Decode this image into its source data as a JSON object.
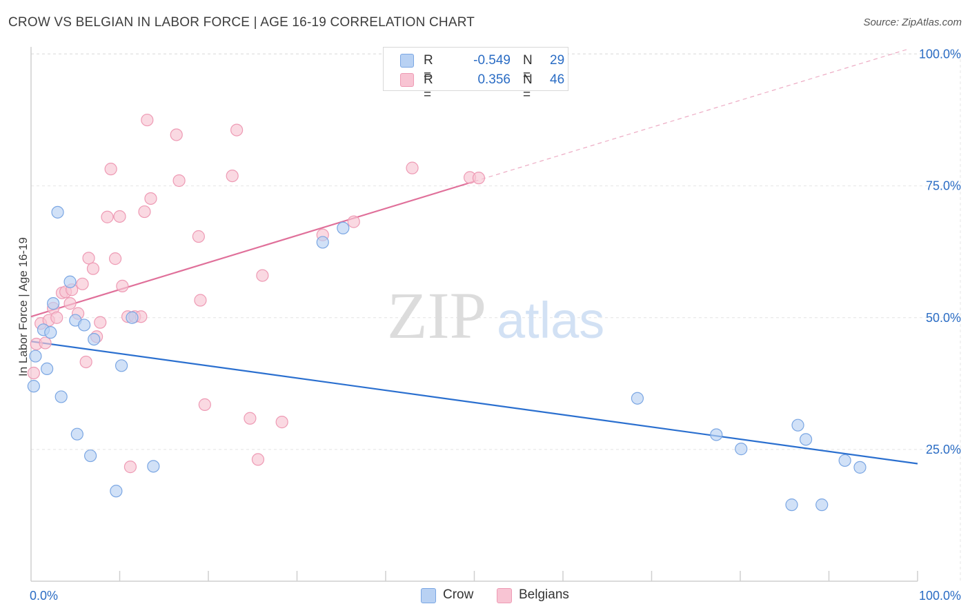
{
  "header": {
    "title": "CROW VS BELGIAN IN LABOR FORCE | AGE 16-19 CORRELATION CHART",
    "source": "Source: ZipAtlas.com"
  },
  "watermark": {
    "zip": "ZIP",
    "atlas": "atlas"
  },
  "legend": {
    "r_label": "R =",
    "n_label": "N =",
    "rows": [
      {
        "name": "Crow",
        "r": "-0.549",
        "n": "29",
        "fill": "#b8d1f3",
        "stroke": "#7aa6e3"
      },
      {
        "name": "Belgians",
        "r": "0.356",
        "n": "46",
        "fill": "#f8c4d3",
        "stroke": "#ee9ab4"
      }
    ]
  },
  "chart_data": {
    "type": "scatter",
    "title": "CROW VS BELGIAN IN LABOR FORCE | AGE 16-19 CORRELATION CHART",
    "xlabel": "",
    "ylabel": "In Labor Force | Age 16-19",
    "xlim": [
      0,
      100
    ],
    "ylim": [
      0,
      100
    ],
    "x_tick_labels": [
      {
        "value": 0,
        "label": "0.0%"
      },
      {
        "value": 100,
        "label": "100.0%"
      }
    ],
    "y_tick_labels": [
      {
        "value": 25,
        "label": "25.0%"
      },
      {
        "value": 50,
        "label": "50.0%"
      },
      {
        "value": 75,
        "label": "75.0%"
      },
      {
        "value": 100,
        "label": "100.0%"
      }
    ],
    "x_minor_ticks": [
      10,
      20,
      30,
      40,
      50,
      60,
      70,
      80,
      90,
      100
    ],
    "grid": true,
    "legend_position": "top-center",
    "colors": {
      "crow_fill": "#b8d1f3",
      "crow_stroke": "#7aa6e3",
      "crow_line": "#2a6fcf",
      "belgian_fill": "#f8c4d3",
      "belgian_stroke": "#ee9ab4",
      "belgian_line": "#e0709a",
      "axis_label": "#2a6cc4"
    },
    "series": [
      {
        "name": "Crow",
        "r": -0.549,
        "n": 29,
        "points": [
          [
            0.3,
            37.0
          ],
          [
            0.5,
            42.7
          ],
          [
            1.4,
            47.7
          ],
          [
            1.8,
            40.3
          ],
          [
            2.2,
            47.2
          ],
          [
            2.5,
            52.7
          ],
          [
            3.0,
            70.0
          ],
          [
            3.4,
            35.0
          ],
          [
            4.4,
            56.8
          ],
          [
            5.0,
            49.5
          ],
          [
            5.2,
            27.9
          ],
          [
            6.0,
            48.6
          ],
          [
            6.7,
            23.8
          ],
          [
            7.1,
            45.9
          ],
          [
            9.6,
            17.1
          ],
          [
            10.2,
            40.9
          ],
          [
            11.4,
            50.0
          ],
          [
            13.8,
            21.8
          ],
          [
            32.9,
            64.3
          ],
          [
            35.2,
            67.0
          ],
          [
            68.4,
            34.7
          ],
          [
            77.3,
            27.8
          ],
          [
            80.1,
            25.1
          ],
          [
            85.8,
            14.5
          ],
          [
            86.5,
            29.6
          ],
          [
            87.4,
            26.9
          ],
          [
            89.2,
            14.5
          ],
          [
            91.8,
            22.9
          ],
          [
            93.5,
            21.6
          ]
        ],
        "trend": {
          "x0": 0,
          "y0": 45.5,
          "x1": 100,
          "y1": 22.3,
          "dashed_from": 100
        }
      },
      {
        "name": "Belgians",
        "r": 0.356,
        "n": 46,
        "points": [
          [
            0.3,
            39.5
          ],
          [
            0.6,
            45.0
          ],
          [
            1.1,
            48.9
          ],
          [
            1.6,
            45.2
          ],
          [
            2.0,
            49.5
          ],
          [
            2.5,
            51.8
          ],
          [
            2.9,
            50.0
          ],
          [
            3.5,
            54.7
          ],
          [
            3.9,
            54.9
          ],
          [
            4.4,
            52.7
          ],
          [
            4.6,
            55.3
          ],
          [
            5.3,
            50.8
          ],
          [
            5.8,
            56.4
          ],
          [
            6.2,
            41.6
          ],
          [
            6.5,
            61.3
          ],
          [
            7.0,
            59.3
          ],
          [
            7.4,
            46.4
          ],
          [
            7.8,
            49.1
          ],
          [
            8.6,
            69.1
          ],
          [
            9.0,
            78.2
          ],
          [
            9.5,
            61.2
          ],
          [
            10.0,
            69.2
          ],
          [
            10.3,
            56.0
          ],
          [
            10.9,
            50.2
          ],
          [
            11.2,
            21.7
          ],
          [
            11.7,
            50.2
          ],
          [
            12.4,
            50.2
          ],
          [
            12.8,
            70.1
          ],
          [
            13.1,
            87.5
          ],
          [
            13.5,
            72.6
          ],
          [
            16.4,
            84.7
          ],
          [
            16.7,
            76.0
          ],
          [
            18.9,
            65.4
          ],
          [
            19.1,
            53.3
          ],
          [
            19.6,
            33.5
          ],
          [
            22.7,
            76.9
          ],
          [
            23.2,
            85.6
          ],
          [
            24.7,
            30.9
          ],
          [
            25.6,
            23.1
          ],
          [
            26.1,
            58.0
          ],
          [
            28.3,
            30.2
          ],
          [
            32.9,
            65.7
          ],
          [
            36.4,
            68.2
          ],
          [
            43.0,
            78.4
          ],
          [
            49.5,
            76.6
          ],
          [
            50.5,
            76.5
          ]
        ],
        "trend": {
          "x0": 0,
          "y0": 50.2,
          "x1": 100,
          "y1": 101.5,
          "dashed_from": 50
        }
      }
    ]
  }
}
